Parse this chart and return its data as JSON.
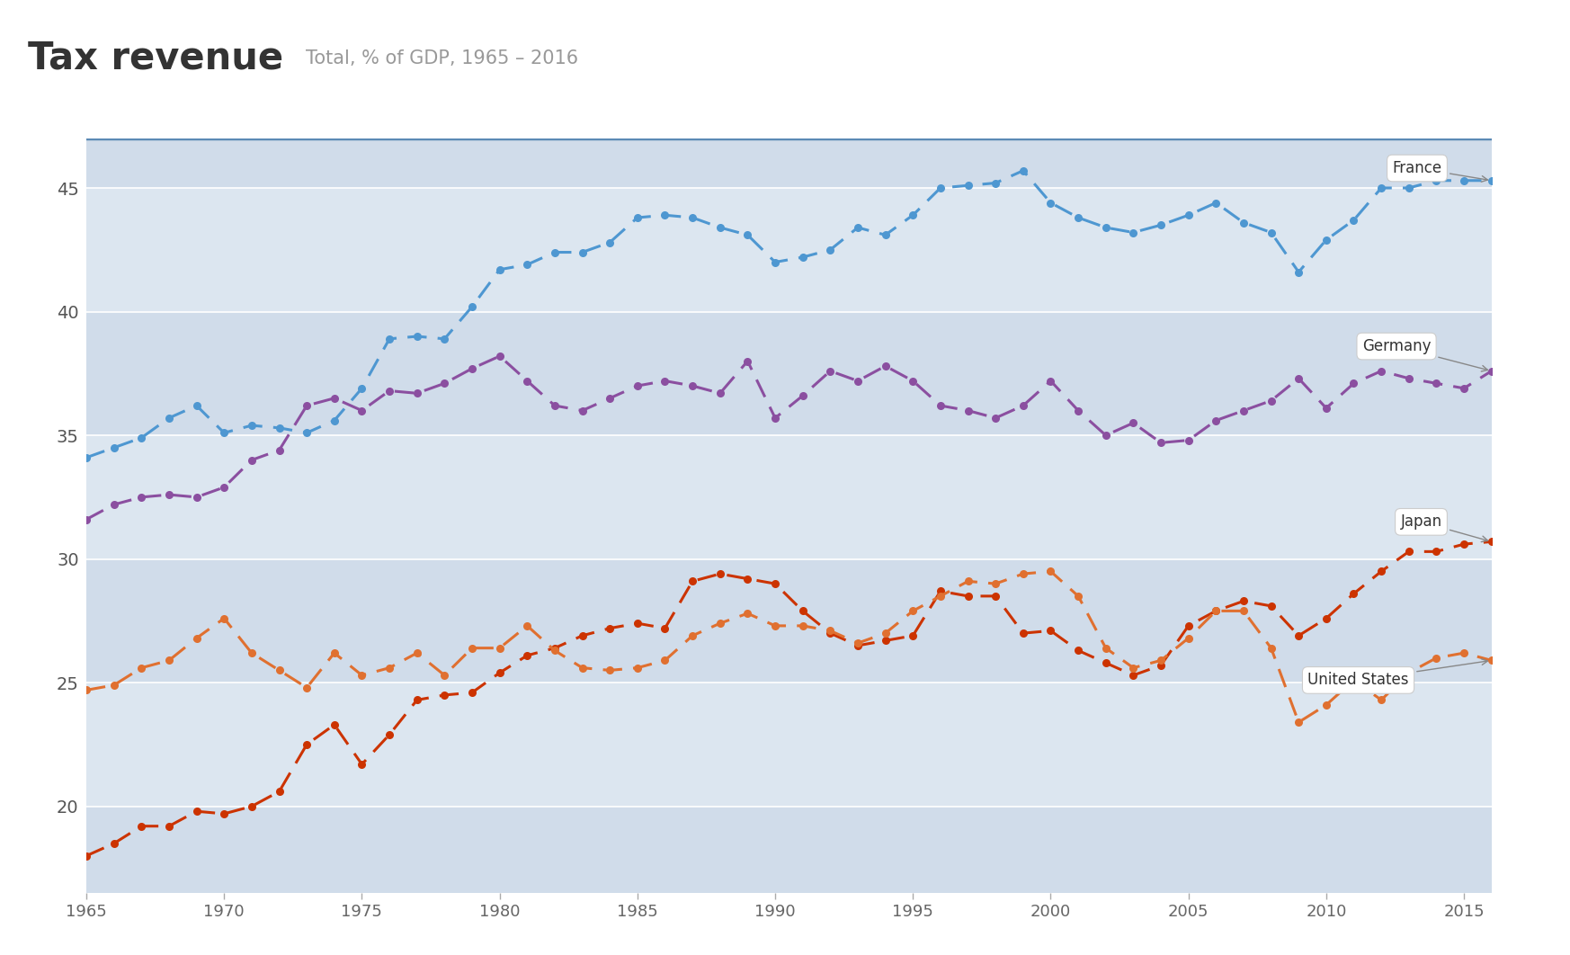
{
  "title_main": "Tax revenue",
  "title_sub": "Total, % of GDP, 1965 – 2016",
  "years": [
    1965,
    1966,
    1967,
    1968,
    1969,
    1970,
    1971,
    1972,
    1973,
    1974,
    1975,
    1976,
    1977,
    1978,
    1979,
    1980,
    1981,
    1982,
    1983,
    1984,
    1985,
    1986,
    1987,
    1988,
    1989,
    1990,
    1991,
    1992,
    1993,
    1994,
    1995,
    1996,
    1997,
    1998,
    1999,
    2000,
    2001,
    2002,
    2003,
    2004,
    2005,
    2006,
    2007,
    2008,
    2009,
    2010,
    2011,
    2012,
    2013,
    2014,
    2015,
    2016
  ],
  "france": [
    34.1,
    34.5,
    34.9,
    35.7,
    36.2,
    35.1,
    35.4,
    35.3,
    35.1,
    35.6,
    36.9,
    38.9,
    39.0,
    38.9,
    40.2,
    41.7,
    41.9,
    42.4,
    42.4,
    42.8,
    43.8,
    43.9,
    43.8,
    43.4,
    43.1,
    42.0,
    42.2,
    42.5,
    43.4,
    43.1,
    43.9,
    45.0,
    45.1,
    45.2,
    45.7,
    44.4,
    43.8,
    43.4,
    43.2,
    43.5,
    43.9,
    44.4,
    43.6,
    43.2,
    41.6,
    42.9,
    43.7,
    45.0,
    45.0,
    45.3,
    45.3,
    45.3
  ],
  "germany": [
    31.6,
    32.2,
    32.5,
    32.6,
    32.5,
    32.9,
    34.0,
    34.4,
    36.2,
    36.5,
    36.0,
    36.8,
    36.7,
    37.1,
    37.7,
    38.2,
    37.2,
    36.2,
    36.0,
    36.5,
    37.0,
    37.2,
    37.0,
    36.7,
    38.0,
    35.7,
    36.6,
    37.6,
    37.2,
    37.8,
    37.2,
    36.2,
    36.0,
    35.7,
    36.2,
    37.2,
    36.0,
    35.0,
    35.5,
    34.7,
    34.8,
    35.6,
    36.0,
    36.4,
    37.3,
    36.1,
    37.1,
    37.6,
    37.3,
    37.1,
    36.9,
    37.6
  ],
  "japan": [
    18.0,
    18.5,
    19.2,
    19.2,
    19.8,
    19.7,
    20.0,
    20.6,
    22.5,
    23.3,
    21.7,
    22.9,
    24.3,
    24.5,
    24.6,
    25.4,
    26.1,
    26.4,
    26.9,
    27.2,
    27.4,
    27.2,
    29.1,
    29.4,
    29.2,
    29.0,
    27.9,
    27.0,
    26.5,
    26.7,
    26.9,
    28.7,
    28.5,
    28.5,
    27.0,
    27.1,
    26.3,
    25.8,
    25.3,
    25.7,
    27.3,
    27.9,
    28.3,
    28.1,
    26.9,
    27.6,
    28.6,
    29.5,
    30.3,
    30.3,
    30.6,
    30.7
  ],
  "united_states": [
    24.7,
    24.9,
    25.6,
    25.9,
    26.8,
    27.6,
    26.2,
    25.5,
    24.8,
    26.2,
    25.3,
    25.6,
    26.2,
    25.3,
    26.4,
    26.4,
    27.3,
    26.3,
    25.6,
    25.5,
    25.6,
    25.9,
    26.9,
    27.4,
    27.8,
    27.3,
    27.3,
    27.1,
    26.6,
    27.0,
    27.9,
    28.5,
    29.1,
    29.0,
    29.4,
    29.5,
    28.5,
    26.4,
    25.6,
    25.9,
    26.8,
    27.9,
    27.9,
    26.4,
    23.4,
    24.1,
    25.1,
    24.3,
    25.4,
    26.0,
    26.2,
    25.9
  ],
  "france_color": "#4e97d1",
  "germany_color": "#8B4FA0",
  "japan_color": "#cc3300",
  "us_color": "#e07030",
  "band_dark": "#d0dcea",
  "band_light": "#dce6f0",
  "top_border_color": "#5b8ab5",
  "grid_color": "#ffffff",
  "ylim_bottom": 16.5,
  "ylim_top": 47.0,
  "ytick_positions": [
    20,
    25,
    30,
    35,
    40,
    45
  ],
  "band_boundaries": [
    16.5,
    20,
    25,
    30,
    35,
    40,
    45,
    47.0
  ],
  "xlim": [
    1965,
    2016
  ]
}
